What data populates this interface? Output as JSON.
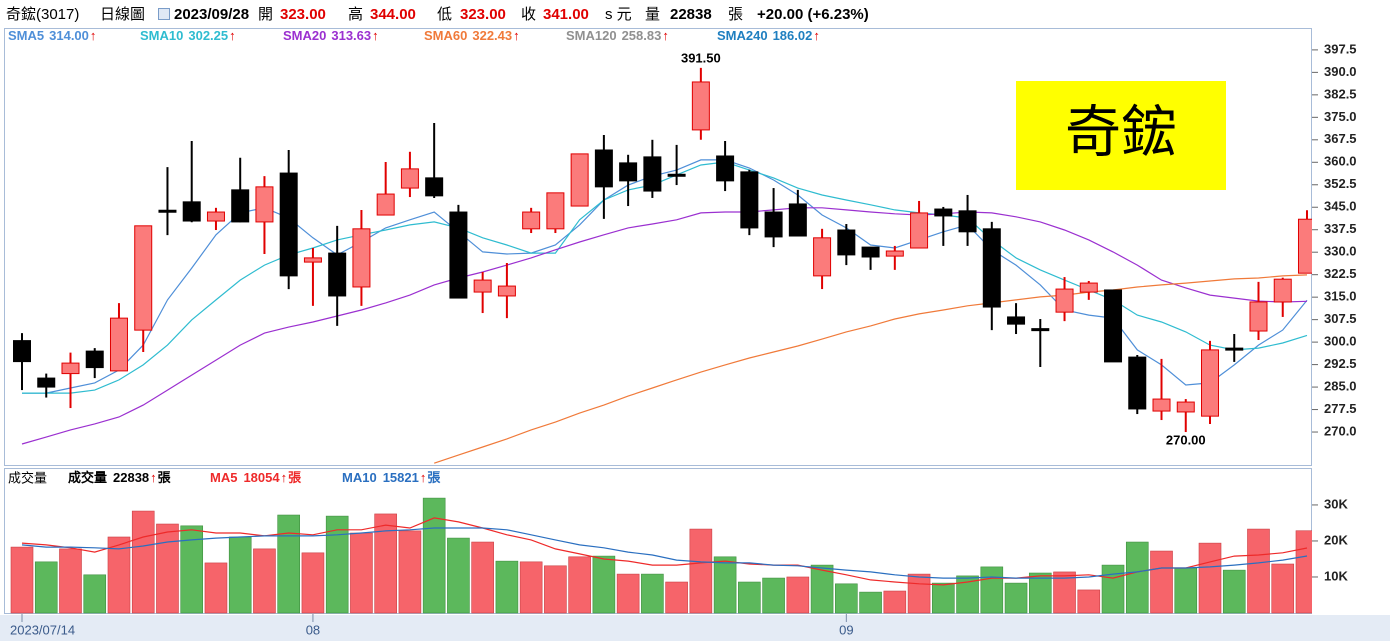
{
  "header": {
    "symbol": "奇鋐(3017)",
    "period": "日線圖",
    "date": "2023/09/28",
    "fields": [
      {
        "label": "開",
        "value": "323.00"
      },
      {
        "label": "高",
        "value": "344.00"
      },
      {
        "label": "低",
        "value": "323.00"
      },
      {
        "label": "收",
        "value": "341.00",
        "unit": "s 元"
      },
      {
        "label": "量",
        "value": "22838",
        "unit": "張"
      }
    ],
    "change": "+20.00 (+6.23%)"
  },
  "chart_data": [
    {
      "type": "candlestick",
      "open": [
        300.5,
        288,
        289.5,
        297,
        290.4,
        304,
        344,
        346.8,
        340.4,
        350.8,
        340.1,
        356.4,
        326.7,
        329.7,
        318.4,
        342.4,
        351.4,
        354.8,
        343.4,
        316.7,
        315.4,
        337.8,
        337.8,
        345.4,
        364.1,
        359.8,
        361.8,
        356,
        370.8,
        362.1,
        356.8,
        343.4,
        346.1,
        322.1,
        337.4,
        331.7,
        328.7,
        331.4,
        344.4,
        343.8,
        337.8,
        308.4,
        304.5,
        310,
        316.7,
        317.4,
        295,
        277,
        276.7,
        275.3,
        298,
        303.7,
        313.4,
        323
      ],
      "high": [
        303,
        289.5,
        296.5,
        298,
        313,
        338.8,
        358.4,
        367.1,
        344.8,
        361.5,
        355.4,
        364.1,
        331.4,
        338.8,
        344.1,
        360.1,
        363.5,
        373.1,
        345.8,
        323.4,
        326.4,
        344.8,
        349.8,
        362.8,
        369.1,
        362.5,
        367.5,
        365.8,
        391.5,
        367.1,
        357.5,
        351.4,
        350.8,
        337.8,
        339.4,
        331.7,
        332.1,
        347.1,
        345.1,
        349.1,
        340.1,
        313,
        307.7,
        321.7,
        320.4,
        317.4,
        295.7,
        294.4,
        281,
        300.4,
        302.7,
        320.1,
        321.5,
        344
      ],
      "low": [
        284,
        281.5,
        278,
        288,
        290.4,
        296.7,
        335.7,
        340,
        337.4,
        340,
        329.4,
        317.7,
        312.1,
        305.4,
        312.1,
        342.4,
        348.4,
        348.1,
        314.7,
        309.7,
        308,
        336.4,
        336.4,
        345.4,
        341.1,
        345.4,
        348.1,
        352.4,
        367.5,
        350.4,
        335.7,
        331.7,
        335.4,
        317.7,
        325.7,
        324.1,
        324.1,
        331.4,
        332.1,
        332.1,
        304,
        302.7,
        291.7,
        307,
        314.1,
        293.4,
        276,
        274,
        270,
        272.7,
        293.4,
        300.7,
        308.4,
        323
      ],
      "close": [
        293.5,
        285,
        293,
        291.5,
        308,
        338.8,
        343.5,
        340.4,
        343.4,
        340.1,
        351.8,
        322.1,
        328.1,
        315.4,
        337.8,
        349.4,
        357.8,
        348.8,
        314.7,
        320.7,
        318.7,
        343.4,
        349.8,
        362.8,
        351.8,
        353.8,
        350.4,
        355.8,
        386.8,
        353.8,
        338.1,
        335.1,
        335.4,
        334.8,
        329.1,
        328.4,
        330.4,
        343.1,
        342.1,
        336.8,
        311.7,
        306,
        304.4,
        317.7,
        319.7,
        293.4,
        277.7,
        281,
        280,
        297.4,
        297.5,
        313.4,
        321,
        341
      ],
      "up_color": "#fb7b7b",
      "up_edge": "#e00000",
      "down_color": "#000000",
      "ylim": [
        259,
        400.8
      ],
      "yticks": [
        {
          "value": 270,
          "label": "270.0"
        },
        277.5,
        {
          "value": 285,
          "label": "285.0"
        },
        292.5,
        {
          "value": 300,
          "label": "300.0"
        },
        307.5,
        {
          "value": 315,
          "label": "315.0"
        },
        322.5,
        {
          "value": 330,
          "label": "330.0"
        },
        337.5,
        {
          "value": 345,
          "label": "345.0"
        },
        352.5,
        {
          "value": 360,
          "label": "360.0"
        },
        367.5,
        {
          "value": 375,
          "label": "375.0"
        },
        382.5,
        {
          "value": 390,
          "label": "390.0"
        },
        397.5
      ],
      "series": [
        {
          "name": "SMA5",
          "value_label": "314.00",
          "trend": "↑",
          "color": "#4f8fd8",
          "values": [
            283,
            283,
            284.7,
            286.4,
            290.7,
            299,
            314.1,
            324.7,
            335.8,
            343.1,
            344.8,
            341.4,
            334.8,
            329.1,
            333.4,
            338.1,
            340.8,
            343.4,
            336.8,
            330.1,
            329.4,
            329.7,
            332.4,
            339.1,
            347.4,
            352.4,
            355.4,
            357.4,
            360.8,
            360.8,
            358.1,
            354.1,
            349.1,
            342.4,
            338.1,
            332.4,
            331.4,
            334.1,
            336.8,
            339.1,
            330.8,
            325.7,
            319.1,
            310.7,
            309,
            308,
            297.4,
            292.4,
            285.7,
            286.4,
            292.4,
            299,
            304,
            314
          ]
        },
        {
          "name": "SMA10",
          "value_label": "302.25",
          "trend": "↑",
          "color": "#2fbcd0",
          "values": [
            283,
            283,
            283,
            284,
            287.4,
            292.4,
            299,
            307.4,
            314.1,
            320.7,
            325.7,
            329.1,
            331.4,
            334.1,
            335.8,
            337.4,
            339.1,
            340.1,
            338.1,
            334.8,
            332.4,
            329.7,
            329.7,
            340.8,
            347.4,
            350.8,
            352.4,
            355.8,
            359.1,
            360.1,
            357.4,
            354.8,
            351.4,
            349.1,
            347.4,
            345.8,
            344.1,
            343.1,
            342.4,
            341.4,
            334.1,
            328.1,
            324.1,
            320.7,
            317.4,
            314.1,
            309,
            306.7,
            303.4,
            299,
            297.4,
            298,
            299.7,
            302.25
          ]
        },
        {
          "name": "SMA20",
          "value_label": "313.63",
          "trend": "↑",
          "color": "#9b30d0",
          "values": [
            266,
            268.3,
            270.7,
            272.7,
            275,
            279,
            284,
            289,
            294,
            299,
            303,
            305,
            306.7,
            308.7,
            310.7,
            313.1,
            315.7,
            319.1,
            321.4,
            323.4,
            325.7,
            328.1,
            330.8,
            333.4,
            335.8,
            338.1,
            339.4,
            340.8,
            343.1,
            343.4,
            343.4,
            344.1,
            344.8,
            344.8,
            344.1,
            343.4,
            342.8,
            342.4,
            342.8,
            343.4,
            343.1,
            341.8,
            340.1,
            337.4,
            334.1,
            330.1,
            325.7,
            320.7,
            318.1,
            315.7,
            314.7,
            313.7,
            313.4,
            313.63
          ]
        },
        {
          "name": "SMA60",
          "value_label": "322.43",
          "trend": "↑",
          "color": "#f07a3a",
          "values": [
            null,
            null,
            null,
            null,
            null,
            null,
            null,
            null,
            null,
            null,
            null,
            null,
            null,
            null,
            null,
            null,
            null,
            259.6,
            262.3,
            265,
            267.7,
            270.7,
            273.3,
            276.3,
            279,
            282,
            284.7,
            287.4,
            290,
            292.4,
            294.7,
            296.7,
            298.7,
            301,
            303.4,
            305.4,
            307.7,
            309.4,
            310.7,
            312.1,
            313.1,
            314.1,
            315.1,
            315.7,
            316.7,
            317.4,
            318.4,
            319.1,
            319.7,
            320.4,
            321.1,
            321.4,
            322.1,
            322.43
          ]
        },
        {
          "name": "SMA120",
          "value_label": "258.83",
          "trend": "↑",
          "color": "#909090"
        },
        {
          "name": "SMA240",
          "value_label": "186.02",
          "trend": "↑",
          "color": "#1f7fc0"
        }
      ],
      "annotations": [
        {
          "label": "391.50",
          "of": "high",
          "index": 28
        },
        {
          "label": "270.00",
          "of": "low",
          "index": 48
        }
      ],
      "badge": {
        "text": "奇鋐",
        "color": "#ffff00"
      }
    },
    {
      "type": "bar",
      "title": "成交量",
      "name": "成交量",
      "trend": "↑",
      "unit": "張",
      "categories": [
        "2023/07/14",
        null,
        null,
        null,
        null,
        null,
        null,
        null,
        null,
        null,
        null,
        null,
        "08",
        null,
        null,
        null,
        null,
        null,
        null,
        null,
        null,
        null,
        null,
        null,
        null,
        null,
        null,
        null,
        null,
        null,
        null,
        null,
        null,
        null,
        "09",
        null,
        null,
        null,
        null,
        null,
        null,
        null,
        null,
        null,
        null,
        null,
        null,
        null,
        null,
        null,
        null,
        null,
        null,
        null
      ],
      "values": [
        18300,
        14200,
        17800,
        10600,
        21100,
        28300,
        24700,
        24200,
        13900,
        21100,
        17800,
        27200,
        16700,
        26900,
        22200,
        27500,
        22800,
        31900,
        20800,
        19700,
        14400,
        14200,
        13100,
        15600,
        15800,
        10800,
        10800,
        8600,
        23300,
        15600,
        8600,
        9700,
        10000,
        13300,
        8100,
        5800,
        6100,
        10800,
        8300,
        10300,
        12800,
        8300,
        11100,
        11400,
        6400,
        13300,
        19700,
        17200,
        12500,
        19400,
        11900,
        23300,
        13600,
        22838
      ],
      "up": [
        true,
        false,
        true,
        false,
        true,
        true,
        true,
        false,
        true,
        false,
        true,
        false,
        true,
        false,
        true,
        true,
        true,
        false,
        false,
        true,
        false,
        true,
        true,
        true,
        false,
        true,
        false,
        true,
        true,
        false,
        false,
        false,
        true,
        false,
        false,
        false,
        true,
        true,
        false,
        false,
        false,
        false,
        false,
        true,
        true,
        false,
        false,
        true,
        false,
        true,
        false,
        true,
        true,
        true
      ],
      "up_color": "#f6646a",
      "down_color": "#5cb85c",
      "ylim": [
        0,
        39700
      ],
      "yticks": [
        {
          "value": 10000,
          "label": "10K"
        },
        {
          "value": 20000,
          "label": "20K"
        },
        {
          "value": 30000,
          "label": "30K"
        }
      ],
      "series": [
        {
          "name": "MA5",
          "trend": "↑",
          "color": "#ee2a2a",
          "values": [
            19400,
            18900,
            18100,
            16900,
            18900,
            21100,
            22500,
            23100,
            22200,
            22200,
            21400,
            22200,
            21700,
            23100,
            23100,
            24400,
            23600,
            26400,
            25300,
            23600,
            21700,
            20300,
            17800,
            16400,
            15000,
            14400,
            13300,
            13300,
            13900,
            14400,
            13600,
            13300,
            13300,
            11900,
            10600,
            9200,
            8600,
            8100,
            7800,
            8600,
            9700,
            9700,
            10300,
            10300,
            10600,
            9700,
            11400,
            12500,
            12500,
            14200,
            15800,
            16100,
            16700,
            18054
          ]
        },
        {
          "name": "MA10",
          "trend": "↑",
          "color": "#2a6fc0",
          "values": [
            18900,
            18300,
            18300,
            18100,
            17800,
            18600,
            19700,
            20300,
            20800,
            21100,
            21400,
            21400,
            21400,
            21700,
            22200,
            22800,
            23100,
            23600,
            23600,
            23600,
            23100,
            21700,
            20300,
            18900,
            18100,
            16900,
            16100,
            14700,
            14200,
            13900,
            13900,
            13300,
            13100,
            12500,
            11900,
            11400,
            10600,
            10000,
            9700,
            9700,
            10000,
            9700,
            9700,
            9700,
            10000,
            10800,
            11400,
            12500,
            12500,
            12800,
            13300,
            13900,
            14700,
            15821
          ]
        }
      ]
    }
  ]
}
